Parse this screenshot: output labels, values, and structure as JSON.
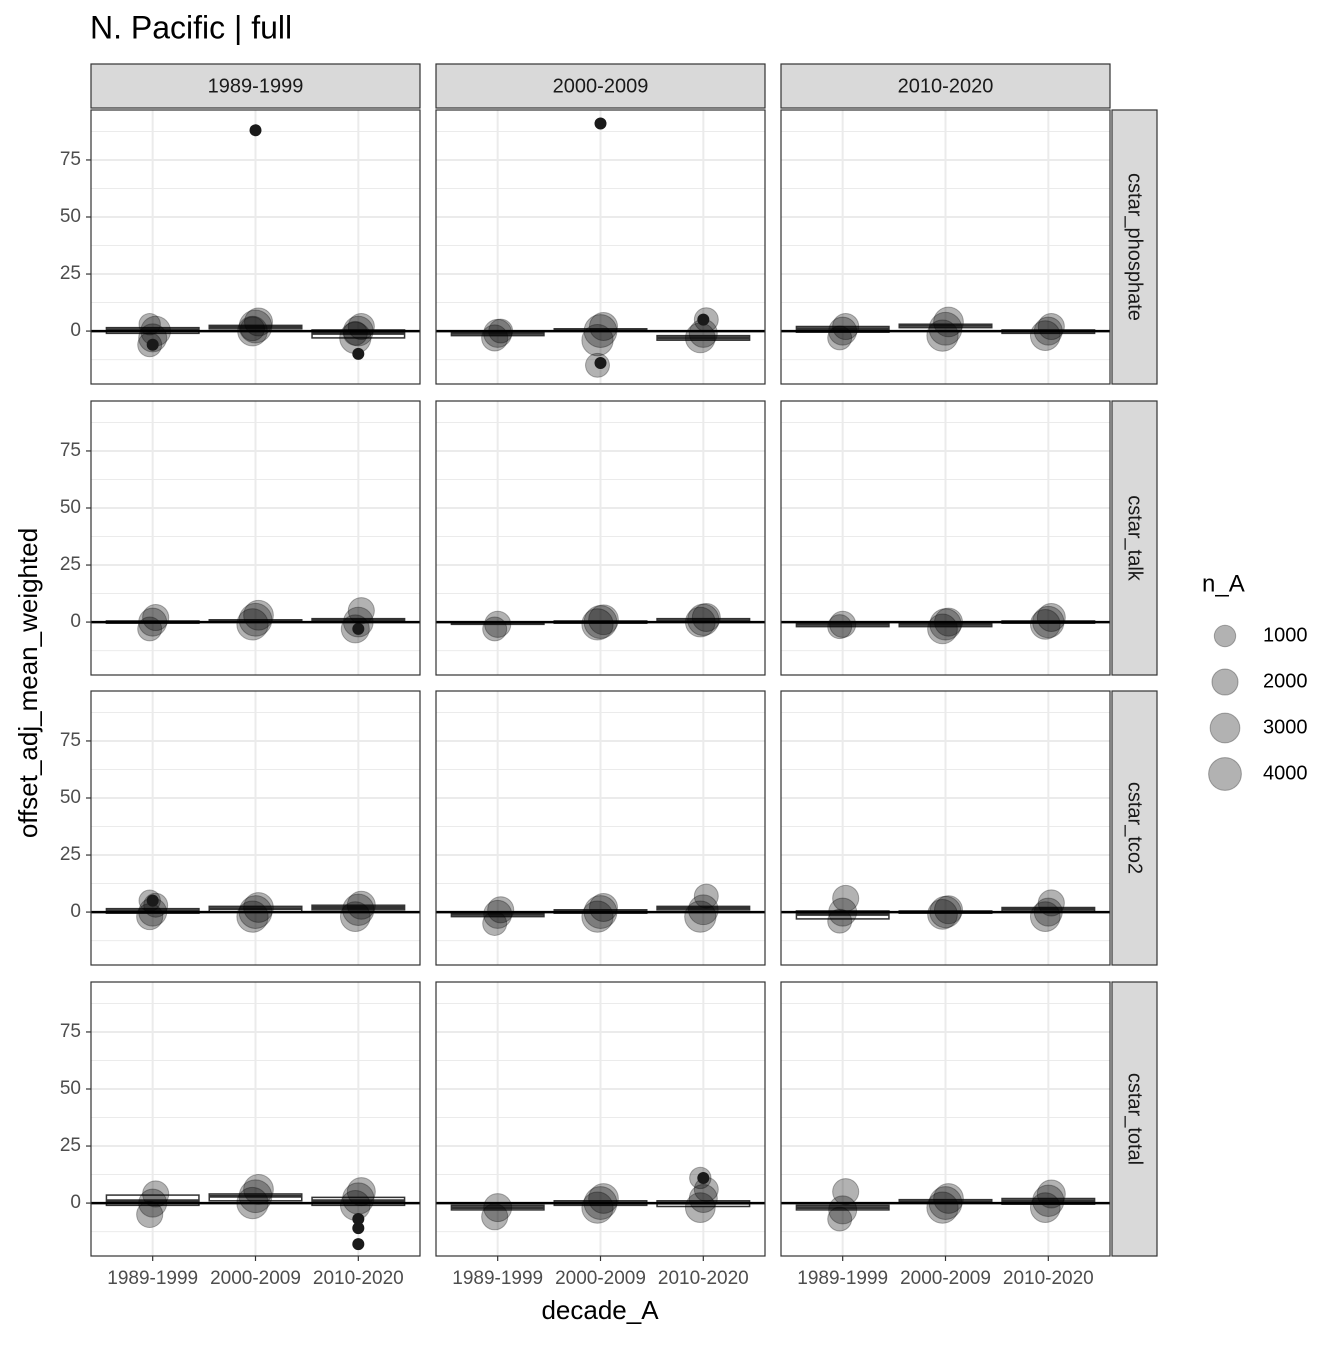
{
  "chart_data": {
    "type": "boxplot",
    "title": "N. Pacific | full",
    "x_label": "decade_A",
    "y_label": "offset_adj_mean_weighted",
    "categories": [
      "1989-1999",
      "2000-2009",
      "2010-2020"
    ],
    "facet_cols": [
      "1989-1999",
      "2000-2009",
      "2010-2020"
    ],
    "facet_rows": [
      "cstar_phosphate",
      "cstar_talk",
      "cstar_tco2",
      "cstar_total"
    ],
    "ylim": [
      -23.2,
      96.9
    ],
    "yticks": [
      0,
      25,
      50,
      75
    ],
    "minor_yticks": [
      -12.5,
      12.5,
      37.5,
      62.5,
      87.5
    ],
    "grid": true,
    "hline": 0,
    "legend_title": "n_A",
    "size_breaks": [
      1000,
      2000,
      3000,
      4000
    ],
    "panels": [
      {
        "boxes": [
          {
            "q1": -1,
            "median": 0.5,
            "q3": 1.5,
            "points": [
              -6,
              -3,
              0,
              3
            ],
            "sizes": [
              1500,
              2500,
              3000,
              1000
            ],
            "outliers": [
              -6
            ]
          },
          {
            "q1": 1,
            "median": 2,
            "q3": 2.5,
            "points": [
              0,
              2,
              4,
              1
            ],
            "sizes": [
              3000,
              4000,
              2500,
              1500
            ],
            "outliers": [
              88
            ]
          },
          {
            "q1": -3,
            "median": -1,
            "q3": 0.5,
            "points": [
              -3,
              0,
              2,
              -1
            ],
            "sizes": [
              3500,
              3000,
              2000,
              1500
            ],
            "outliers": [
              -10
            ]
          }
        ]
      },
      {
        "boxes": [
          {
            "q1": -2,
            "median": -1,
            "q3": -0.5,
            "points": [
              -3,
              -1,
              0
            ],
            "sizes": [
              2000,
              2500,
              1500
            ],
            "outliers": []
          },
          {
            "q1": 0,
            "median": 0.5,
            "q3": 1,
            "points": [
              -4,
              0,
              2,
              -15
            ],
            "sizes": [
              3500,
              4000,
              2500,
              1500
            ],
            "outliers": [
              -14,
              91
            ]
          },
          {
            "q1": -4,
            "median": -3,
            "q3": -2,
            "points": [
              -3,
              -1,
              5
            ],
            "sizes": [
              3000,
              2500,
              1500
            ],
            "outliers": [
              5
            ]
          }
        ]
      },
      {
        "boxes": [
          {
            "q1": -0.5,
            "median": 1,
            "q3": 2,
            "points": [
              -3,
              0,
              2
            ],
            "sizes": [
              1500,
              2500,
              2000
            ],
            "outliers": []
          },
          {
            "q1": 1.5,
            "median": 2.5,
            "q3": 3,
            "points": [
              -2,
              1,
              4
            ],
            "sizes": [
              3500,
              4000,
              3000
            ],
            "outliers": []
          },
          {
            "q1": -1,
            "median": 0,
            "q3": 0.5,
            "points": [
              -2,
              0,
              2
            ],
            "sizes": [
              3000,
              2500,
              2000
            ],
            "outliers": []
          }
        ]
      },
      {
        "boxes": [
          {
            "q1": -0.5,
            "median": 0,
            "q3": 0.5,
            "points": [
              -3,
              0,
              2
            ],
            "sizes": [
              1500,
              2500,
              2000
            ],
            "outliers": []
          },
          {
            "q1": 0,
            "median": 0.5,
            "q3": 1,
            "points": [
              -1,
              1,
              3
            ],
            "sizes": [
              3500,
              4000,
              3000
            ],
            "outliers": []
          },
          {
            "q1": 0,
            "median": 1,
            "q3": 1.5,
            "points": [
              -3,
              0,
              5
            ],
            "sizes": [
              2500,
              3000,
              2000
            ],
            "outliers": [
              -3
            ]
          }
        ]
      },
      {
        "boxes": [
          {
            "q1": -1,
            "median": -0.5,
            "q3": 0,
            "points": [
              -3,
              -1
            ],
            "sizes": [
              1500,
              2000
            ],
            "outliers": []
          },
          {
            "q1": -0.5,
            "median": 0,
            "q3": 0.5,
            "points": [
              -1,
              0,
              1
            ],
            "sizes": [
              3500,
              4000,
              3000
            ],
            "outliers": []
          },
          {
            "q1": 0,
            "median": 0.5,
            "q3": 1.5,
            "points": [
              0,
              1,
              2
            ],
            "sizes": [
              3000,
              3500,
              2500
            ],
            "outliers": []
          }
        ]
      },
      {
        "boxes": [
          {
            "q1": -2,
            "median": -1,
            "q3": -0.5,
            "points": [
              -2,
              -1
            ],
            "sizes": [
              1500,
              2000
            ],
            "outliers": []
          },
          {
            "q1": -2,
            "median": -1,
            "q3": -0.5,
            "points": [
              -3,
              -1,
              0
            ],
            "sizes": [
              3000,
              3500,
              2500
            ],
            "outliers": []
          },
          {
            "q1": -0.5,
            "median": 0,
            "q3": 0.5,
            "points": [
              -1,
              0,
              2
            ],
            "sizes": [
              3000,
              3500,
              2500
            ],
            "outliers": []
          }
        ]
      },
      {
        "boxes": [
          {
            "q1": -0.5,
            "median": 0.5,
            "q3": 1.5,
            "points": [
              -2,
              0,
              3,
              5
            ],
            "sizes": [
              2000,
              2500,
              1500,
              1000
            ],
            "outliers": [
              5
            ]
          },
          {
            "q1": 0,
            "median": 1.5,
            "q3": 2.5,
            "points": [
              -2,
              0,
              2
            ],
            "sizes": [
              3500,
              4000,
              3000
            ],
            "outliers": []
          },
          {
            "q1": 1,
            "median": 2,
            "q3": 3,
            "points": [
              -2,
              1,
              3
            ],
            "sizes": [
              3000,
              3500,
              2500
            ],
            "outliers": []
          }
        ]
      },
      {
        "boxes": [
          {
            "q1": -2,
            "median": -1,
            "q3": -0.5,
            "points": [
              -5,
              -1,
              1
            ],
            "sizes": [
              1500,
              2500,
              2000
            ],
            "outliers": []
          },
          {
            "q1": -0.5,
            "median": 0.5,
            "q3": 1,
            "points": [
              -2,
              0,
              2
            ],
            "sizes": [
              3500,
              4000,
              2500
            ],
            "outliers": []
          },
          {
            "q1": 1,
            "median": 2,
            "q3": 2.5,
            "points": [
              -2,
              1,
              7
            ],
            "sizes": [
              3500,
              3000,
              1500
            ],
            "outliers": []
          }
        ]
      },
      {
        "boxes": [
          {
            "q1": -3,
            "median": -1,
            "q3": 0.5,
            "points": [
              -4,
              0,
              6
            ],
            "sizes": [
              1500,
              2500,
              2000
            ],
            "outliers": []
          },
          {
            "q1": -0.5,
            "median": 0,
            "q3": 0.5,
            "points": [
              -1,
              0,
              1
            ],
            "sizes": [
              3000,
              3500,
              2500
            ],
            "outliers": []
          },
          {
            "q1": 0.5,
            "median": 1.5,
            "q3": 2,
            "points": [
              -2,
              0,
              4
            ],
            "sizes": [
              3000,
              2500,
              2000
            ],
            "outliers": []
          }
        ]
      },
      {
        "boxes": [
          {
            "q1": -1,
            "median": 1,
            "q3": 3.5,
            "points": [
              -5,
              0,
              4
            ],
            "sizes": [
              2000,
              2500,
              2000
            ],
            "outliers": []
          },
          {
            "q1": 1,
            "median": 3,
            "q3": 4,
            "points": [
              0,
              3,
              6
            ],
            "sizes": [
              3500,
              4000,
              3000
            ],
            "outliers": []
          },
          {
            "q1": -1,
            "median": 1,
            "q3": 2.5,
            "points": [
              -1,
              2,
              5
            ],
            "sizes": [
              3000,
              3500,
              2500
            ],
            "outliers": [
              -7,
              -11,
              -18
            ]
          }
        ]
      },
      {
        "boxes": [
          {
            "q1": -3,
            "median": -2,
            "q3": -1,
            "points": [
              -6,
              -2
            ],
            "sizes": [
              2000,
              2500
            ],
            "outliers": []
          },
          {
            "q1": -1,
            "median": 0,
            "q3": 1,
            "points": [
              -2,
              0,
              2
            ],
            "sizes": [
              3500,
              4000,
              3000
            ],
            "outliers": []
          },
          {
            "q1": -1.5,
            "median": 0,
            "q3": 1,
            "points": [
              -2,
              2,
              6,
              11
            ],
            "sizes": [
              3000,
              2500,
              1500,
              1000
            ],
            "outliers": [
              11
            ]
          }
        ]
      },
      {
        "boxes": [
          {
            "q1": -3,
            "median": -2,
            "q3": -1,
            "points": [
              -7,
              -3,
              5
            ],
            "sizes": [
              1500,
              2500,
              2000
            ],
            "outliers": []
          },
          {
            "q1": 0,
            "median": 0.5,
            "q3": 1.5,
            "points": [
              -2,
              0,
              2
            ],
            "sizes": [
              3500,
              4000,
              3000
            ],
            "outliers": []
          },
          {
            "q1": -0.5,
            "median": 1,
            "q3": 2,
            "points": [
              -2,
              1,
              4
            ],
            "sizes": [
              3000,
              3500,
              2500
            ],
            "outliers": []
          }
        ]
      }
    ]
  }
}
